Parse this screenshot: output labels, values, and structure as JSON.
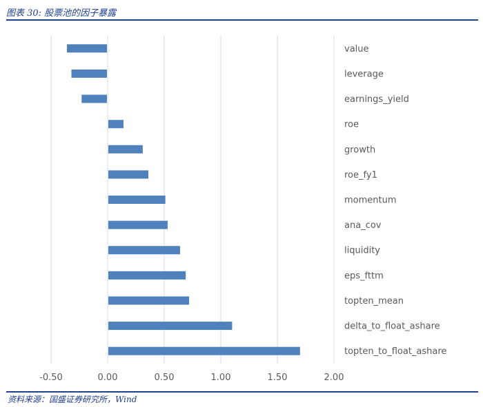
{
  "header": {
    "title": "图表 30: 股票池的因子暴露"
  },
  "footer": {
    "source": "资料来源：国盛证券研究所，Wind"
  },
  "colors": {
    "brand": "#1f3f8f",
    "bar": "#4f81bd",
    "grid": "#d9d9d9",
    "axis": "#bfbfbf",
    "text": "#595959"
  },
  "chart_data": {
    "type": "bar",
    "orientation": "horizontal",
    "title": "",
    "xlabel": "",
    "ylabel": "",
    "xlim": [
      -0.5,
      2.0
    ],
    "xticks": [
      -0.5,
      0.0,
      0.5,
      1.0,
      1.5,
      2.0
    ],
    "xtick_labels": [
      "-0.50",
      "0.00",
      "0.50",
      "1.00",
      "1.50",
      "2.00"
    ],
    "grid": true,
    "legend": "none",
    "category_label_side": "right",
    "categories": [
      "value",
      "leverage",
      "earnings_yield",
      "roe",
      "growth",
      "roe_fy1",
      "momentum",
      "ana_cov",
      "liquidity",
      "eps_fttm",
      "topten_mean",
      "delta_to_float_ashare",
      "topten_to_float_ashare"
    ],
    "values": [
      -0.36,
      -0.32,
      -0.23,
      0.14,
      0.31,
      0.36,
      0.51,
      0.53,
      0.64,
      0.69,
      0.72,
      1.1,
      1.7
    ]
  }
}
